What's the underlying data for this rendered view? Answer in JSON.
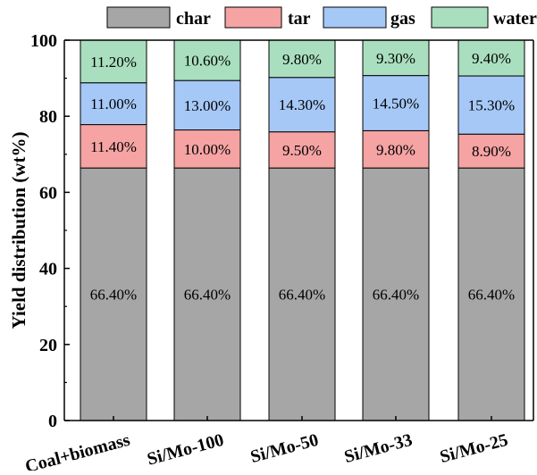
{
  "chart_data": {
    "type": "bar",
    "stacked": true,
    "categories": [
      "Coal+biomass",
      "Si/Mo-100",
      "Si/Mo-50",
      "Si/Mo-33",
      "Si/Mo-25"
    ],
    "series": [
      {
        "name": "char",
        "color": "#a6a6a6",
        "values": [
          66.4,
          66.4,
          66.4,
          66.4,
          66.4
        ],
        "labels": [
          "66.40%",
          "66.40%",
          "66.40%",
          "66.40%",
          "66.40%"
        ]
      },
      {
        "name": "tar",
        "color": "#f5a3a3",
        "values": [
          11.4,
          10.0,
          9.5,
          9.8,
          8.9
        ],
        "labels": [
          "11.40%",
          "10.00%",
          "9.50%",
          "9.80%",
          "8.90%"
        ]
      },
      {
        "name": "gas",
        "color": "#a6c8f7",
        "values": [
          11.0,
          13.0,
          14.3,
          14.5,
          15.3
        ],
        "labels": [
          "11.00%",
          "13.00%",
          "14.30%",
          "14.50%",
          "15.30%"
        ]
      },
      {
        "name": "water",
        "color": "#a9dfbf",
        "values": [
          11.2,
          10.6,
          9.8,
          9.3,
          9.4
        ],
        "labels": [
          "11.20%",
          "10.60%",
          "9.80%",
          "9.30%",
          "9.40%"
        ]
      }
    ],
    "ylabel": "Yield distribution (wt%)",
    "xlabel": "",
    "ylim": [
      0,
      100
    ],
    "yticks": [
      0,
      20,
      40,
      60,
      80,
      100
    ],
    "ytick_labels": [
      "0",
      "20",
      "40",
      "60",
      "80",
      "100"
    ],
    "legend_position": "top",
    "grid": false
  }
}
